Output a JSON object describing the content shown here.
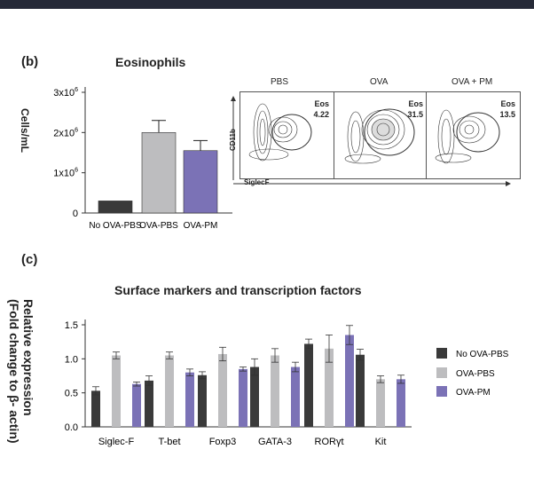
{
  "panels": {
    "b": {
      "label": "(b)",
      "title": "Eosinophils",
      "ylabel": "Cells/mL",
      "flow": {
        "ylabel": "CD11b",
        "xlabel": "SiglecF",
        "gate_label": "Eos",
        "plots": [
          {
            "name": "PBS",
            "value": "4.22"
          },
          {
            "name": "OVA",
            "value": "31.5"
          },
          {
            "name": "OVA + PM",
            "value": "13.5"
          }
        ]
      }
    },
    "c": {
      "label": "(c)",
      "title": "Surface markers and transcription factors",
      "ylabel_line1": "Relative expression",
      "ylabel_line2": "(Fold change to β- actin)"
    }
  },
  "chart_data": [
    {
      "type": "bar",
      "title": "Eosinophils",
      "ylabel": "Cells/mL",
      "xlabel": "",
      "categories": [
        "No OVA-PBS",
        "OVA-PBS",
        "OVA-PM"
      ],
      "values": [
        300000,
        2000000,
        1550000
      ],
      "errors": [
        0,
        300000,
        250000
      ],
      "colors": [
        "#3a3a3a",
        "#bdbdbf",
        "#7b72b6"
      ],
      "ylim": [
        0,
        3000000
      ],
      "yticks": [
        {
          "value": 0,
          "base": "0",
          "exp": ""
        },
        {
          "value": 1000000,
          "base": "1x10",
          "exp": "6"
        },
        {
          "value": 2000000,
          "base": "2x10",
          "exp": "6"
        },
        {
          "value": 3000000,
          "base": "3x10",
          "exp": "6"
        }
      ],
      "grid": false
    },
    {
      "type": "bar",
      "title": "Surface markers and transcription factors",
      "ylabel": "Relative expression (Fold change to β- actin)",
      "xlabel": "",
      "categories": [
        "Siglec-F",
        "T-bet",
        "Foxp3",
        "GATA-3",
        "RORγt",
        "Kit"
      ],
      "series": [
        {
          "name": "No OVA-PBS",
          "color": "#3a3a3a",
          "values": [
            0.53,
            0.68,
            0.76,
            0.88,
            1.22,
            1.06
          ],
          "errors": [
            0.06,
            0.07,
            0.05,
            0.12,
            0.07,
            0.08
          ]
        },
        {
          "name": "OVA-PBS",
          "color": "#bdbdbf",
          "values": [
            1.05,
            1.05,
            1.07,
            1.05,
            1.15,
            0.7
          ],
          "errors": [
            0.05,
            0.05,
            0.1,
            0.1,
            0.2,
            0.05
          ]
        },
        {
          "name": "OVA-PM",
          "color": "#7b72b6",
          "values": [
            0.63,
            0.8,
            0.85,
            0.88,
            1.35,
            0.7
          ],
          "errors": [
            0.03,
            0.05,
            0.03,
            0.07,
            0.14,
            0.06
          ]
        }
      ],
      "ylim": [
        0,
        1.5
      ],
      "yticks": [
        0.0,
        0.5,
        1.0,
        1.5
      ],
      "ytick_labels": [
        "0.0",
        "0.5",
        "1.0",
        "1.5"
      ],
      "legend": "right",
      "grid": false
    }
  ]
}
